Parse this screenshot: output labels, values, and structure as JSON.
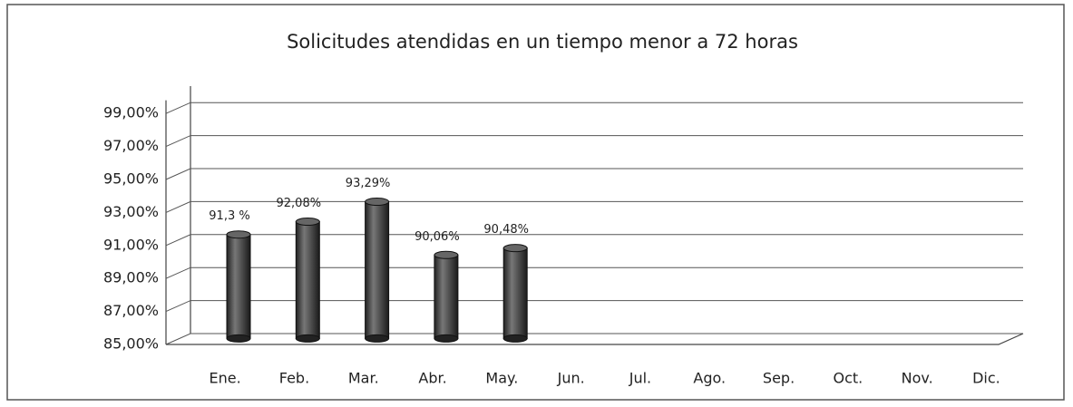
{
  "chart_data": {
    "type": "bar",
    "title": "Solicitudes atendidas en un tiempo menor a 72 horas",
    "categories": [
      "Ene.",
      "Feb.",
      "Mar.",
      "Abr.",
      "May.",
      "Jun.",
      "Jul.",
      "Ago.",
      "Sep.",
      "Oct.",
      "Nov.",
      "Dic."
    ],
    "values": [
      91.3,
      92.08,
      93.29,
      90.06,
      90.48,
      null,
      null,
      null,
      null,
      null,
      null,
      null
    ],
    "value_labels": [
      "91,3 %",
      "92,08%",
      "93,29%",
      "90,06%",
      "90,48%",
      null,
      null,
      null,
      null,
      null,
      null,
      null
    ],
    "color": "#555555",
    "ylim": [
      85,
      100
    ],
    "yticks": [
      {
        "value": 85,
        "label": "85,00%"
      },
      {
        "value": 87,
        "label": "87,00%"
      },
      {
        "value": 89,
        "label": "89,00%"
      },
      {
        "value": 91,
        "label": "91,00%"
      },
      {
        "value": 93,
        "label": "93,00%"
      },
      {
        "value": 95,
        "label": "95,00%"
      },
      {
        "value": 97,
        "label": "97,00%"
      },
      {
        "value": 99,
        "label": "99,00%"
      }
    ],
    "grid": true
  }
}
